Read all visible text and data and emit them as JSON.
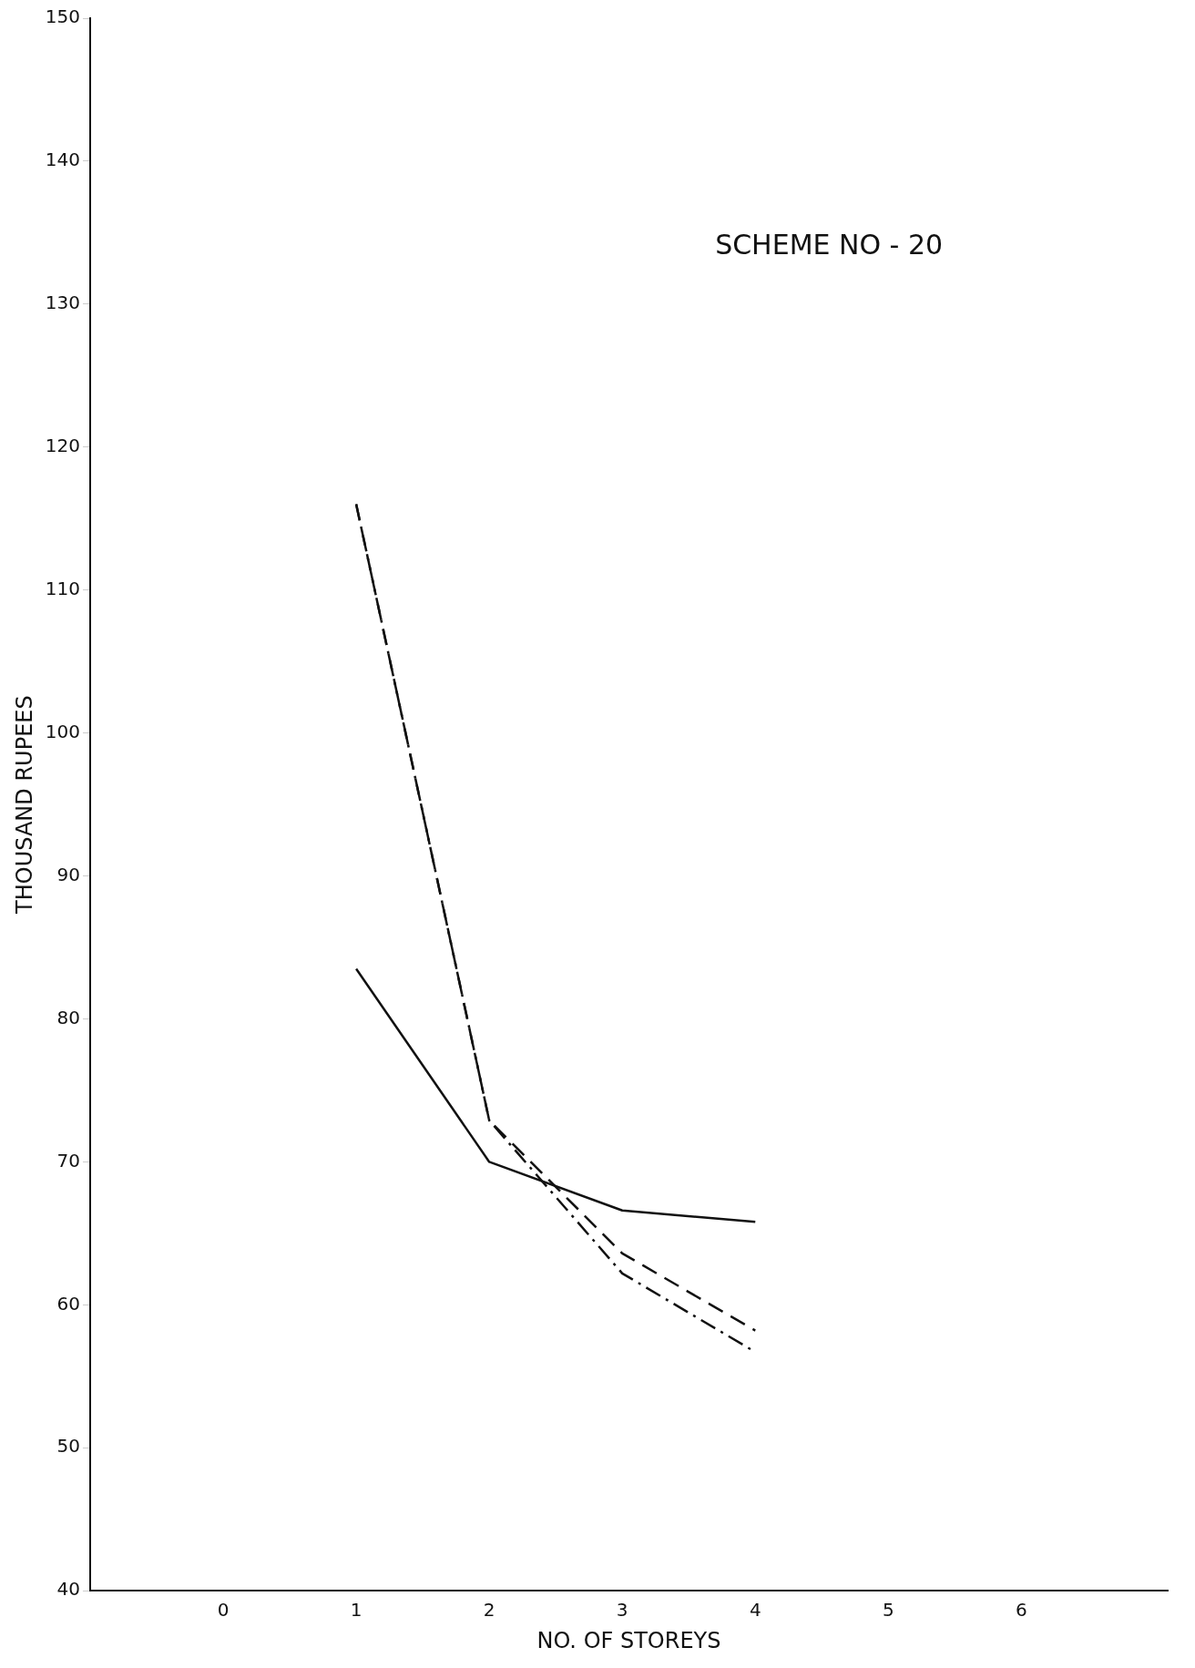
{
  "chart_data": {
    "type": "line",
    "xlabel": "NO. OF STOREYS",
    "ylabel": "THOUSAND RUPEES",
    "annotations": [
      "SCHEME NO - 20"
    ],
    "x": [
      1,
      2,
      3,
      4
    ],
    "series": [
      {
        "color": "#111111",
        "line_style": "solid",
        "values": [
          83.5,
          70,
          66.6,
          65.8
        ]
      },
      {
        "color": "#111111",
        "line_style": "dashed",
        "values": [
          116,
          72.9,
          63.6,
          58.2
        ]
      },
      {
        "color": "#111111",
        "line_style": "dashdot",
        "values": [
          116,
          72.9,
          62.2,
          56.7
        ]
      }
    ],
    "xlim": [
      -1,
      7.1
    ],
    "xticks": [
      0,
      1,
      2,
      3,
      4,
      5,
      6
    ],
    "ylim": [
      40,
      150
    ],
    "yticks": [
      40,
      50,
      60,
      70,
      80,
      90,
      100,
      110,
      120,
      130,
      140,
      150
    ],
    "grid": false,
    "legend": false,
    "marker": "none"
  }
}
